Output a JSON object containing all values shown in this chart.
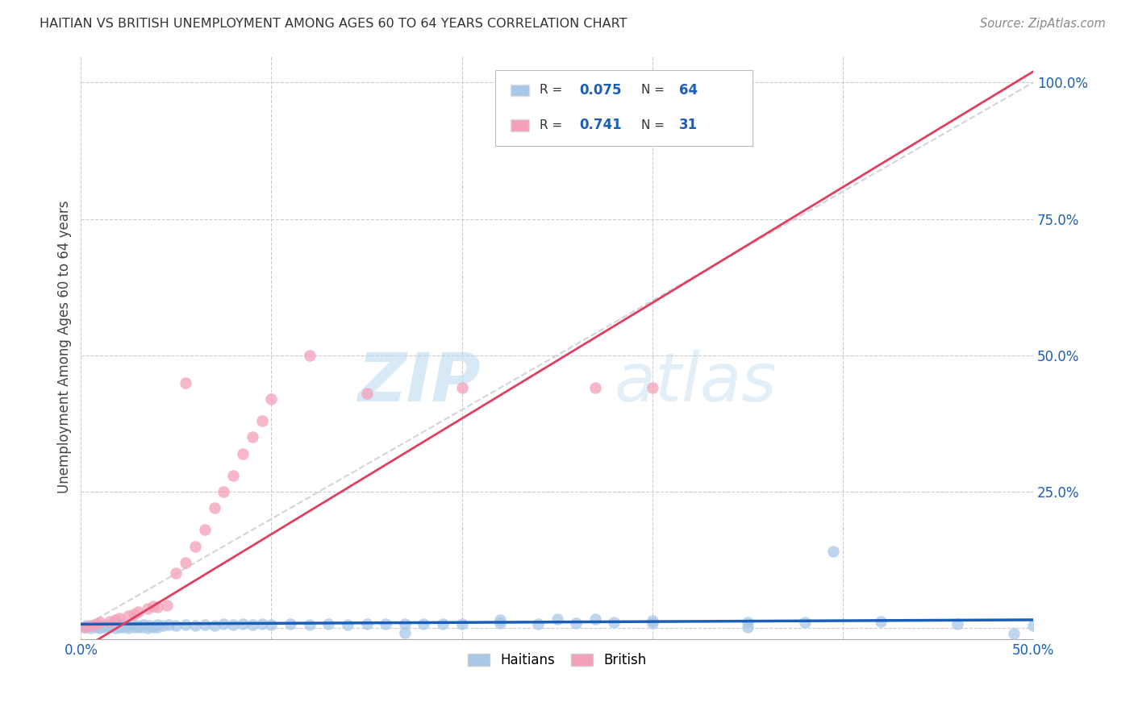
{
  "title": "HAITIAN VS BRITISH UNEMPLOYMENT AMONG AGES 60 TO 64 YEARS CORRELATION CHART",
  "source": "Source: ZipAtlas.com",
  "ylabel": "Unemployment Among Ages 60 to 64 years",
  "xlim": [
    0.0,
    0.5
  ],
  "ylim": [
    -0.02,
    1.05
  ],
  "background_color": "#ffffff",
  "grid_color": "#cccccc",
  "watermark_zip": "ZIP",
  "watermark_atlas": "atlas",
  "haitian_color": "#a8c8e8",
  "british_color": "#f4a0b8",
  "haitian_line_color": "#1a5eb8",
  "british_line_color": "#e04060",
  "diagonal_color": "#c8c8d0",
  "haitian_scatter": [
    [
      0.002,
      0.002
    ],
    [
      0.005,
      0.0
    ],
    [
      0.008,
      0.001
    ],
    [
      0.01,
      0.0
    ],
    [
      0.012,
      0.002
    ],
    [
      0.015,
      0.001
    ],
    [
      0.018,
      0.0
    ],
    [
      0.02,
      0.002
    ],
    [
      0.022,
      0.001
    ],
    [
      0.025,
      0.0
    ],
    [
      0.028,
      0.001
    ],
    [
      0.03,
      0.002
    ],
    [
      0.032,
      0.001
    ],
    [
      0.035,
      0.0
    ],
    [
      0.038,
      0.002
    ],
    [
      0.04,
      0.001
    ],
    [
      0.003,
      0.005
    ],
    [
      0.006,
      0.004
    ],
    [
      0.009,
      0.005
    ],
    [
      0.012,
      0.004
    ],
    [
      0.015,
      0.006
    ],
    [
      0.018,
      0.005
    ],
    [
      0.021,
      0.006
    ],
    [
      0.024,
      0.005
    ],
    [
      0.027,
      0.006
    ],
    [
      0.03,
      0.005
    ],
    [
      0.033,
      0.006
    ],
    [
      0.036,
      0.005
    ],
    [
      0.04,
      0.006
    ],
    [
      0.043,
      0.005
    ],
    [
      0.046,
      0.006
    ],
    [
      0.05,
      0.005
    ],
    [
      0.055,
      0.006
    ],
    [
      0.06,
      0.005
    ],
    [
      0.065,
      0.006
    ],
    [
      0.07,
      0.005
    ],
    [
      0.075,
      0.007
    ],
    [
      0.08,
      0.006
    ],
    [
      0.085,
      0.007
    ],
    [
      0.09,
      0.006
    ],
    [
      0.095,
      0.007
    ],
    [
      0.1,
      0.006
    ],
    [
      0.11,
      0.007
    ],
    [
      0.12,
      0.006
    ],
    [
      0.13,
      0.007
    ],
    [
      0.14,
      0.006
    ],
    [
      0.15,
      0.007
    ],
    [
      0.16,
      0.008
    ],
    [
      0.17,
      0.007
    ],
    [
      0.18,
      0.008
    ],
    [
      0.19,
      0.007
    ],
    [
      0.2,
      0.008
    ],
    [
      0.22,
      0.009
    ],
    [
      0.24,
      0.008
    ],
    [
      0.26,
      0.009
    ],
    [
      0.28,
      0.01
    ],
    [
      0.3,
      0.009
    ],
    [
      0.35,
      0.01
    ],
    [
      0.38,
      0.011
    ],
    [
      0.22,
      0.015
    ],
    [
      0.25,
      0.016
    ],
    [
      0.27,
      0.017
    ],
    [
      0.3,
      0.014
    ],
    [
      0.17,
      -0.008
    ],
    [
      0.35,
      0.002
    ],
    [
      0.42,
      0.012
    ],
    [
      0.46,
      0.008
    ],
    [
      0.49,
      -0.01
    ],
    [
      0.395,
      0.14
    ],
    [
      0.5,
      0.004
    ]
  ],
  "british_scatter": [
    [
      0.002,
      0.002
    ],
    [
      0.005,
      0.005
    ],
    [
      0.008,
      0.008
    ],
    [
      0.01,
      0.01
    ],
    [
      0.015,
      0.012
    ],
    [
      0.018,
      0.015
    ],
    [
      0.02,
      0.018
    ],
    [
      0.025,
      0.022
    ],
    [
      0.028,
      0.025
    ],
    [
      0.03,
      0.03
    ],
    [
      0.035,
      0.035
    ],
    [
      0.038,
      0.04
    ],
    [
      0.04,
      0.038
    ],
    [
      0.045,
      0.042
    ],
    [
      0.05,
      0.1
    ],
    [
      0.055,
      0.12
    ],
    [
      0.06,
      0.15
    ],
    [
      0.065,
      0.18
    ],
    [
      0.07,
      0.22
    ],
    [
      0.075,
      0.25
    ],
    [
      0.08,
      0.28
    ],
    [
      0.085,
      0.32
    ],
    [
      0.09,
      0.35
    ],
    [
      0.095,
      0.38
    ],
    [
      0.1,
      0.42
    ],
    [
      0.055,
      0.45
    ],
    [
      0.15,
      0.43
    ],
    [
      0.2,
      0.44
    ],
    [
      0.12,
      0.5
    ],
    [
      0.27,
      0.44
    ],
    [
      0.3,
      0.44
    ]
  ],
  "haitian_trend_x": [
    0.0,
    0.5
  ],
  "haitian_trend_y": [
    0.007,
    0.015
  ],
  "british_trend_x": [
    0.0,
    0.5
  ],
  "british_trend_y": [
    -0.04,
    1.02
  ]
}
